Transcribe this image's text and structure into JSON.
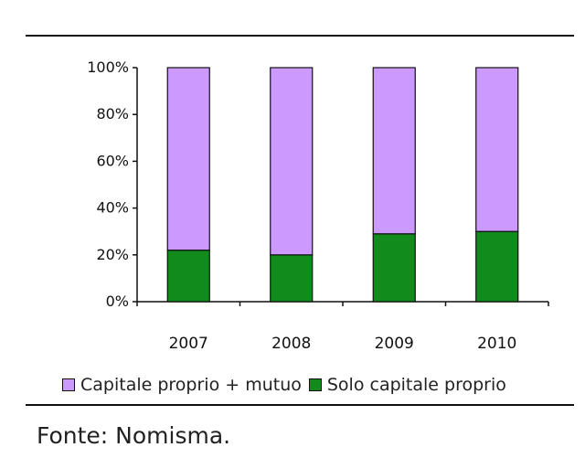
{
  "chart_data": {
    "type": "bar",
    "stacked": true,
    "categories": [
      "2007",
      "2008",
      "2009",
      "2010"
    ],
    "series": [
      {
        "name": "Solo capitale proprio",
        "values": [
          22,
          20,
          29,
          30
        ],
        "color": "#118c1c"
      },
      {
        "name": "Capitale proprio + mutuo",
        "values": [
          78,
          80,
          71,
          70
        ],
        "color": "#cc99ff"
      }
    ],
    "ylim": [
      0,
      100
    ],
    "yticks": [
      "0%",
      "20%",
      "40%",
      "60%",
      "80%",
      "100%"
    ],
    "legend": [
      "Capitale proprio + mutuo",
      "Solo capitale proprio"
    ],
    "grid": false
  },
  "source": "Fonte: Nomisma."
}
